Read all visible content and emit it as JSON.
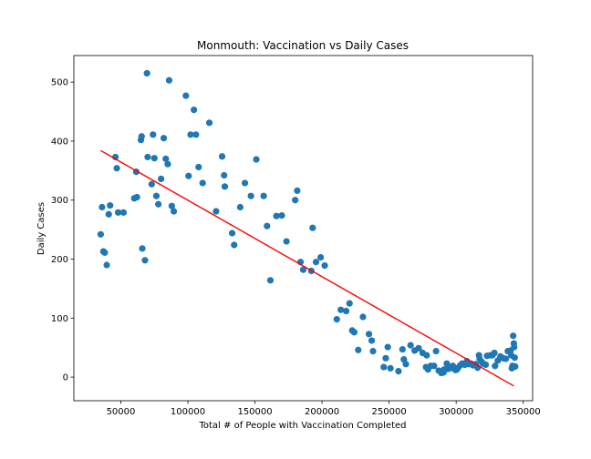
{
  "chart_data": {
    "type": "scatter",
    "title": "Monmouth: Vaccination vs Daily Cases",
    "xlabel": "Total # of People with Vaccination Completed",
    "ylabel": "Daily Cases",
    "xlim": [
      15000,
      357000
    ],
    "ylim": [
      -40,
      545
    ],
    "xticks": [
      50000,
      100000,
      150000,
      200000,
      250000,
      300000,
      350000
    ],
    "xtick_labels": [
      "50000",
      "100000",
      "150000",
      "200000",
      "250000",
      "300000",
      "350000"
    ],
    "yticks": [
      0,
      100,
      200,
      300,
      400,
      500
    ],
    "ytick_labels": [
      "0",
      "100",
      "200",
      "300",
      "400",
      "500"
    ],
    "grid": false,
    "point_color": "#1f77b4",
    "trendline": {
      "color": "#ff0000",
      "x": [
        35000,
        343000
      ],
      "y": [
        384,
        -15
      ]
    },
    "points": [
      [
        35000,
        242
      ],
      [
        36000,
        288
      ],
      [
        37000,
        213
      ],
      [
        38000,
        211
      ],
      [
        39500,
        190
      ],
      [
        41000,
        276
      ],
      [
        42000,
        291
      ],
      [
        46000,
        373
      ],
      [
        47000,
        354
      ],
      [
        48000,
        279
      ],
      [
        52000,
        279
      ],
      [
        60000,
        303
      ],
      [
        61500,
        348
      ],
      [
        62000,
        305
      ],
      [
        65000,
        402
      ],
      [
        65500,
        408
      ],
      [
        66000,
        218
      ],
      [
        68000,
        198
      ],
      [
        69500,
        515
      ],
      [
        70000,
        373
      ],
      [
        73000,
        327
      ],
      [
        74000,
        411
      ],
      [
        75000,
        371
      ],
      [
        76500,
        307
      ],
      [
        78000,
        293
      ],
      [
        80000,
        336
      ],
      [
        82000,
        405
      ],
      [
        83500,
        370
      ],
      [
        85000,
        361
      ],
      [
        86000,
        503
      ],
      [
        88000,
        290
      ],
      [
        89500,
        281
      ],
      [
        98500,
        477
      ],
      [
        100500,
        341
      ],
      [
        102000,
        411
      ],
      [
        104500,
        453
      ],
      [
        106000,
        411
      ],
      [
        108000,
        356
      ],
      [
        111000,
        329
      ],
      [
        116000,
        431
      ],
      [
        121000,
        281
      ],
      [
        125500,
        374
      ],
      [
        127000,
        342
      ],
      [
        127500,
        323
      ],
      [
        133000,
        244
      ],
      [
        134500,
        224
      ],
      [
        139000,
        288
      ],
      [
        142500,
        329
      ],
      [
        147000,
        307
      ],
      [
        151000,
        369
      ],
      [
        156500,
        307
      ],
      [
        159000,
        256
      ],
      [
        161500,
        164
      ],
      [
        166000,
        273
      ],
      [
        170000,
        274
      ],
      [
        173500,
        230
      ],
      [
        180000,
        300
      ],
      [
        181500,
        316
      ],
      [
        184000,
        195
      ],
      [
        186000,
        182
      ],
      [
        192000,
        180
      ],
      [
        193000,
        253
      ],
      [
        195500,
        195
      ],
      [
        199000,
        203
      ],
      [
        202000,
        189
      ],
      [
        211000,
        98
      ],
      [
        214000,
        114
      ],
      [
        218000,
        112
      ],
      [
        220500,
        125
      ],
      [
        222500,
        79
      ],
      [
        224000,
        76
      ],
      [
        227000,
        46
      ],
      [
        230500,
        102
      ],
      [
        235000,
        73
      ],
      [
        237000,
        62
      ],
      [
        238000,
        44
      ],
      [
        246000,
        17
      ],
      [
        247500,
        32
      ],
      [
        249000,
        51
      ],
      [
        251000,
        15
      ],
      [
        257000,
        10
      ],
      [
        260000,
        47
      ],
      [
        261000,
        30
      ],
      [
        262500,
        22
      ],
      [
        266000,
        54
      ],
      [
        269000,
        45
      ],
      [
        272000,
        49
      ],
      [
        275000,
        41
      ],
      [
        277500,
        17
      ],
      [
        278000,
        37
      ],
      [
        279000,
        13
      ],
      [
        281000,
        19
      ],
      [
        283500,
        19
      ],
      [
        285000,
        44
      ],
      [
        287000,
        11
      ],
      [
        289000,
        7
      ],
      [
        290500,
        8
      ],
      [
        291000,
        13
      ],
      [
        292000,
        13
      ],
      [
        293000,
        23
      ],
      [
        294500,
        14
      ],
      [
        295000,
        16
      ],
      [
        297500,
        19
      ],
      [
        298500,
        14
      ],
      [
        299500,
        12
      ],
      [
        300500,
        13
      ],
      [
        301500,
        16
      ],
      [
        303000,
        20
      ],
      [
        304500,
        23
      ],
      [
        306500,
        21
      ],
      [
        308000,
        27
      ],
      [
        309000,
        22
      ],
      [
        311000,
        23
      ],
      [
        312500,
        20
      ],
      [
        314500,
        22
      ],
      [
        316000,
        16
      ],
      [
        317000,
        37
      ],
      [
        317500,
        31
      ],
      [
        319000,
        26
      ],
      [
        320000,
        23
      ],
      [
        322000,
        21
      ],
      [
        323000,
        36
      ],
      [
        325500,
        37
      ],
      [
        327000,
        37
      ],
      [
        328500,
        41
      ],
      [
        329000,
        19
      ],
      [
        331000,
        28
      ],
      [
        333000,
        35
      ],
      [
        335000,
        32
      ],
      [
        337000,
        31
      ],
      [
        338500,
        44
      ],
      [
        340500,
        45
      ],
      [
        341000,
        37
      ],
      [
        341500,
        15
      ],
      [
        342000,
        19
      ],
      [
        342500,
        70
      ],
      [
        343000,
        57
      ],
      [
        343200,
        51
      ],
      [
        343600,
        33
      ],
      [
        344000,
        18
      ]
    ]
  }
}
